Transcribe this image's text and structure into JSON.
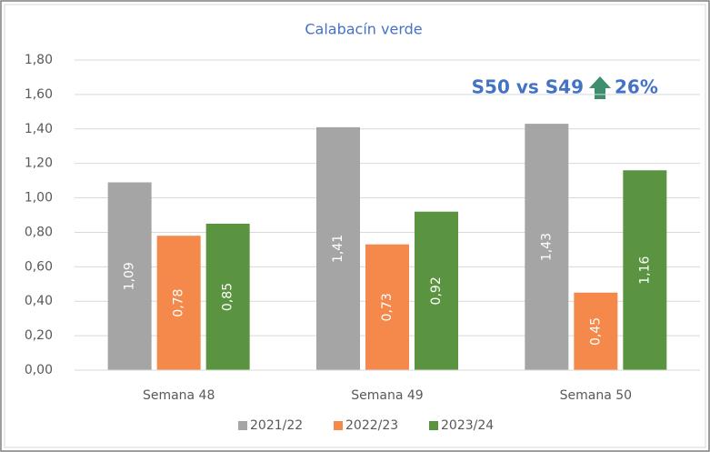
{
  "chart_data": {
    "type": "bar",
    "title": "Calabacín verde",
    "categories": [
      "Semana 48",
      "Semana 49",
      "Semana 50"
    ],
    "series": [
      {
        "name": "2021/22",
        "color": "#a5a5a5",
        "values": [
          1.09,
          1.41,
          1.43
        ],
        "value_labels": [
          "1,09",
          "1,41",
          "1,43"
        ]
      },
      {
        "name": "2022/23",
        "color": "#f4894b",
        "values": [
          0.78,
          0.73,
          0.45
        ],
        "value_labels": [
          "0,78",
          "0,73",
          "0,45"
        ]
      },
      {
        "name": "2023/24",
        "color": "#5b9441",
        "values": [
          0.85,
          0.92,
          1.16
        ],
        "value_labels": [
          "0,85",
          "0,92",
          "1,16"
        ]
      }
    ],
    "ylim": [
      0,
      1.8
    ],
    "yticks": [
      {
        "value": 0,
        "label": "0,00"
      },
      {
        "value": 0.2,
        "label": "0,20"
      },
      {
        "value": 0.4,
        "label": "0,40"
      },
      {
        "value": 0.6,
        "label": "0,60"
      },
      {
        "value": 0.8,
        "label": "0,80"
      },
      {
        "value": 1.0,
        "label": "1,00"
      },
      {
        "value": 1.2,
        "label": "1,20"
      },
      {
        "value": 1.4,
        "label": "1,40"
      },
      {
        "value": 1.6,
        "label": "1,60"
      },
      {
        "value": 1.8,
        "label": "1,80"
      }
    ],
    "grid": true,
    "legend": "bottom",
    "annotation": "S50 vs S49",
    "annotation_value": "26%"
  }
}
